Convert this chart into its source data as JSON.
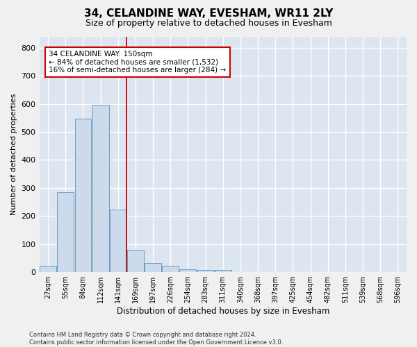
{
  "title": "34, CELANDINE WAY, EVESHAM, WR11 2LY",
  "subtitle": "Size of property relative to detached houses in Evesham",
  "xlabel": "Distribution of detached houses by size in Evesham",
  "ylabel": "Number of detached properties",
  "categories": [
    "27sqm",
    "55sqm",
    "84sqm",
    "112sqm",
    "141sqm",
    "169sqm",
    "197sqm",
    "226sqm",
    "254sqm",
    "283sqm",
    "311sqm",
    "340sqm",
    "368sqm",
    "397sqm",
    "425sqm",
    "454sqm",
    "482sqm",
    "511sqm",
    "539sqm",
    "568sqm",
    "596sqm"
  ],
  "values": [
    22,
    285,
    548,
    597,
    222,
    79,
    33,
    22,
    10,
    8,
    7,
    0,
    0,
    0,
    0,
    0,
    0,
    0,
    0,
    0,
    0
  ],
  "bar_color": "#ccdaeb",
  "bar_edge_color": "#6b9dc2",
  "vline_x": 4.5,
  "vline_color": "#cc0000",
  "annotation_text": "34 CELANDINE WAY: 150sqm\n← 84% of detached houses are smaller (1,532)\n16% of semi-detached houses are larger (284) →",
  "annotation_box_color": "#ffffff",
  "annotation_box_edge": "#cc0000",
  "ylim": [
    0,
    840
  ],
  "yticks": [
    0,
    100,
    200,
    300,
    400,
    500,
    600,
    700,
    800
  ],
  "plot_bg_color": "#dde5f0",
  "fig_bg_color": "#f0f0f0",
  "grid_color": "#ffffff",
  "footer": "Contains HM Land Registry data © Crown copyright and database right 2024.\nContains public sector information licensed under the Open Government Licence v3.0.",
  "title_fontsize": 11,
  "subtitle_fontsize": 9,
  "annotation_fontsize": 7.5,
  "ylabel_fontsize": 8,
  "xlabel_fontsize": 8.5
}
